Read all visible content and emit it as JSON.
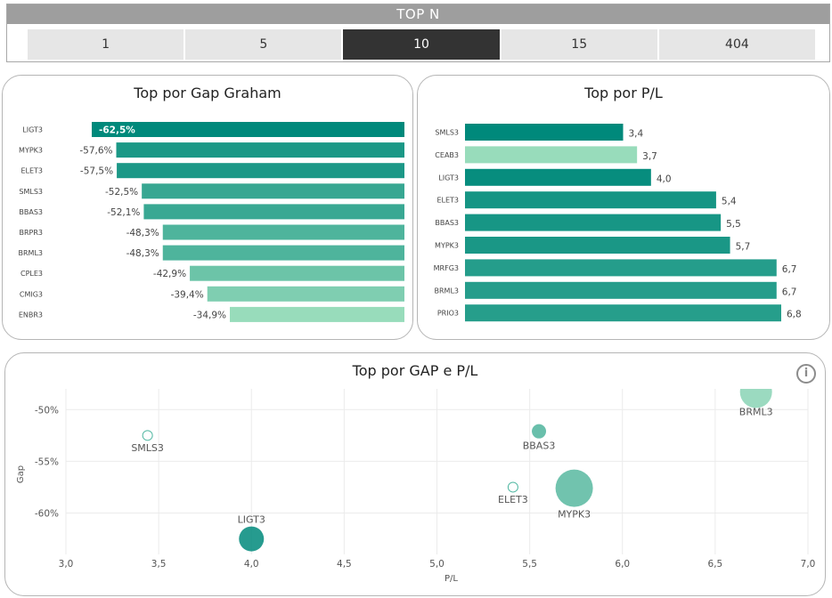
{
  "topn": {
    "title": "TOP N",
    "options": [
      "1",
      "5",
      "10",
      "15",
      "404"
    ],
    "selected": "10"
  },
  "colors": {
    "accent_dark": "#00897b",
    "accent_light": "#98dcbb",
    "selected_bg": "#333333",
    "button_bg": "#e6e6e6"
  },
  "cards": {
    "gap_title": "Top por Gap Graham",
    "pl_title": "Top por P/L",
    "scatter_title": "Top por GAP e P/L"
  },
  "chart_data": [
    {
      "type": "bar",
      "orientation": "horizontal",
      "title": "Top por Gap Graham",
      "categories": [
        "LIGT3",
        "MYPK3",
        "ELET3",
        "SMLS3",
        "BBAS3",
        "BRPR3",
        "BRML3",
        "CPLE3",
        "CMIG3",
        "ENBR3"
      ],
      "values": [
        -62.5,
        -57.6,
        -57.5,
        -52.5,
        -52.1,
        -48.3,
        -48.3,
        -42.9,
        -39.4,
        -34.9
      ],
      "labels": [
        "-62,5%",
        "-57,6%",
        "-57,5%",
        "-52,5%",
        "-52,1%",
        "-48,3%",
        "-48,3%",
        "-42,9%",
        "-39,4%",
        "-34,9%"
      ]
    },
    {
      "type": "bar",
      "orientation": "horizontal",
      "title": "Top por P/L",
      "categories": [
        "SMLS3",
        "CEAB3",
        "LIGT3",
        "ELET3",
        "BBAS3",
        "MYPK3",
        "MRFG3",
        "BRML3",
        "PRIO3"
      ],
      "values": [
        3.4,
        3.7,
        4.0,
        5.4,
        5.5,
        5.7,
        6.7,
        6.7,
        6.8
      ],
      "labels": [
        "3,4",
        "3,7",
        "4,0",
        "5,4",
        "5,5",
        "5,7",
        "6,7",
        "6,7",
        "6,8"
      ],
      "highlighted": [
        false,
        true,
        false,
        false,
        false,
        false,
        false,
        false,
        false
      ]
    },
    {
      "type": "scatter",
      "title": "Top por GAP e P/L",
      "xlabel": "P/L",
      "ylabel": "Gap",
      "xlim": [
        3.0,
        7.0
      ],
      "ylim": [
        -64,
        -48
      ],
      "xticks": [
        "3,0",
        "3,5",
        "4,0",
        "4,5",
        "5,0",
        "5,5",
        "6,0",
        "6,5",
        "7,0"
      ],
      "yticks": [
        "-50%",
        "-55%",
        "-60%"
      ],
      "points": [
        {
          "label": "SMLS3",
          "x": 3.44,
          "y": -52.5,
          "size": 0.5,
          "hollow": true
        },
        {
          "label": "LIGT3",
          "x": 4.0,
          "y": -62.5,
          "size": 14,
          "hollow": false
        },
        {
          "label": "BBAS3",
          "x": 5.55,
          "y": -52.1,
          "size": 8,
          "hollow": false
        },
        {
          "label": "ELET3",
          "x": 5.41,
          "y": -57.5,
          "size": 0.5,
          "hollow": true
        },
        {
          "label": "MYPK3",
          "x": 5.74,
          "y": -57.6,
          "size": 21,
          "hollow": false
        },
        {
          "label": "BRML3",
          "x": 6.72,
          "y": -48.3,
          "size": 18,
          "hollow": false
        }
      ]
    }
  ]
}
